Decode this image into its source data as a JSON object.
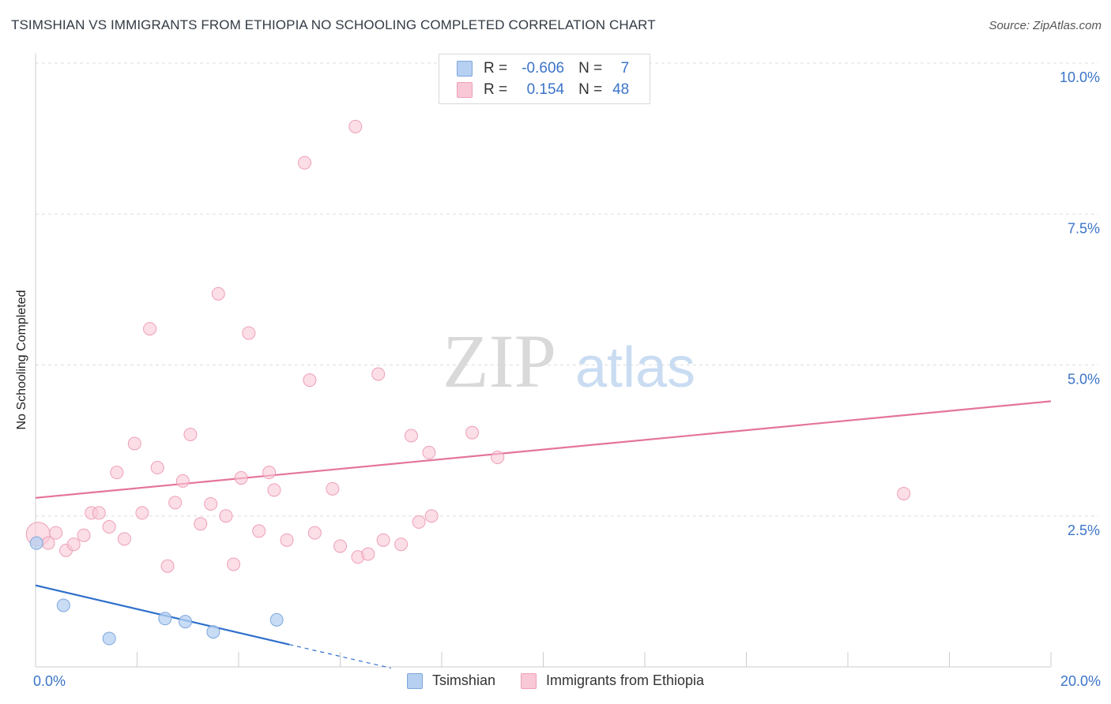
{
  "header": {
    "title": "TSIMSHIAN VS IMMIGRANTS FROM ETHIOPIA NO SCHOOLING COMPLETED CORRELATION CHART",
    "source": "Source: ZipAtlas.com"
  },
  "watermark": {
    "zip": "ZIP",
    "atlas": "atlas"
  },
  "legend_top": {
    "rows": [
      {
        "r_label": "R =",
        "r_value": "-0.606",
        "n_label": "N =",
        "n_value": "7"
      },
      {
        "r_label": "R =",
        "r_value": "0.154",
        "n_label": "N =",
        "n_value": "48"
      }
    ]
  },
  "colors": {
    "blue_fill": "#b6d0f2",
    "blue_stroke": "#7ea6dc",
    "blue_line": "#2e6fcc",
    "pink_fill": "#f9c8d6",
    "pink_stroke": "#ee9fb8",
    "pink_line": "#e4749a",
    "axis_text": "#3b74c8",
    "grid": "#dddddd"
  },
  "chart_data": {
    "type": "scatter",
    "title": "TSIMSHIAN VS IMMIGRANTS FROM ETHIOPIA NO SCHOOLING COMPLETED CORRELATION CHART",
    "xlabel": "",
    "ylabel": "No Schooling Completed",
    "xlim": [
      0,
      20
    ],
    "ylim": [
      0,
      10
    ],
    "x_tick_labels": [
      "0.0%",
      "20.0%"
    ],
    "y_ticks": [
      2.5,
      5.0,
      7.5,
      10.0
    ],
    "y_tick_labels": [
      "2.5%",
      "5.0%",
      "7.5%",
      "10.0%"
    ],
    "legend": [
      "Tsimshian",
      "Immigrants from Ethiopia"
    ],
    "series": [
      {
        "name": "Tsimshian",
        "points": [
          [
            0.02,
            2.05
          ],
          [
            0.55,
            1.02
          ],
          [
            1.45,
            0.47
          ],
          [
            2.55,
            0.8
          ],
          [
            2.95,
            0.75
          ],
          [
            3.5,
            0.58
          ],
          [
            4.75,
            0.78
          ]
        ],
        "trend": {
          "x0": 0,
          "y0": 1.35,
          "x1": 5.0,
          "y1": 0.37,
          "dash_to_x": 7.0,
          "dash_to_y": -0.02
        }
      },
      {
        "name": "Immigrants from Ethiopia",
        "points": [
          [
            0.05,
            2.2
          ],
          [
            0.25,
            2.05
          ],
          [
            0.4,
            2.22
          ],
          [
            0.6,
            1.93
          ],
          [
            0.75,
            2.03
          ],
          [
            0.95,
            2.18
          ],
          [
            1.1,
            2.55
          ],
          [
            1.25,
            2.55
          ],
          [
            1.45,
            2.32
          ],
          [
            1.6,
            3.22
          ],
          [
            1.75,
            2.12
          ],
          [
            1.95,
            3.7
          ],
          [
            2.1,
            2.55
          ],
          [
            2.25,
            5.6
          ],
          [
            2.4,
            3.3
          ],
          [
            2.6,
            1.67
          ],
          [
            2.75,
            2.72
          ],
          [
            2.9,
            3.08
          ],
          [
            3.05,
            3.85
          ],
          [
            3.25,
            2.37
          ],
          [
            3.45,
            2.7
          ],
          [
            3.6,
            6.18
          ],
          [
            3.75,
            2.5
          ],
          [
            3.9,
            1.7
          ],
          [
            4.05,
            3.13
          ],
          [
            4.2,
            5.53
          ],
          [
            4.4,
            2.25
          ],
          [
            4.6,
            3.22
          ],
          [
            4.7,
            2.93
          ],
          [
            4.95,
            2.1
          ],
          [
            5.3,
            8.35
          ],
          [
            5.4,
            4.75
          ],
          [
            5.5,
            2.22
          ],
          [
            5.85,
            2.95
          ],
          [
            6.0,
            2.0
          ],
          [
            6.3,
            8.95
          ],
          [
            6.35,
            1.82
          ],
          [
            6.55,
            1.87
          ],
          [
            6.75,
            4.85
          ],
          [
            6.85,
            2.1
          ],
          [
            7.2,
            2.03
          ],
          [
            7.4,
            3.83
          ],
          [
            7.55,
            2.4
          ],
          [
            7.75,
            3.55
          ],
          [
            7.8,
            2.5
          ],
          [
            8.6,
            3.88
          ],
          [
            9.1,
            3.47
          ],
          [
            17.1,
            2.87
          ]
        ],
        "trend": {
          "x0": 0,
          "y0": 2.8,
          "x1": 20,
          "y1": 4.4
        }
      }
    ]
  }
}
